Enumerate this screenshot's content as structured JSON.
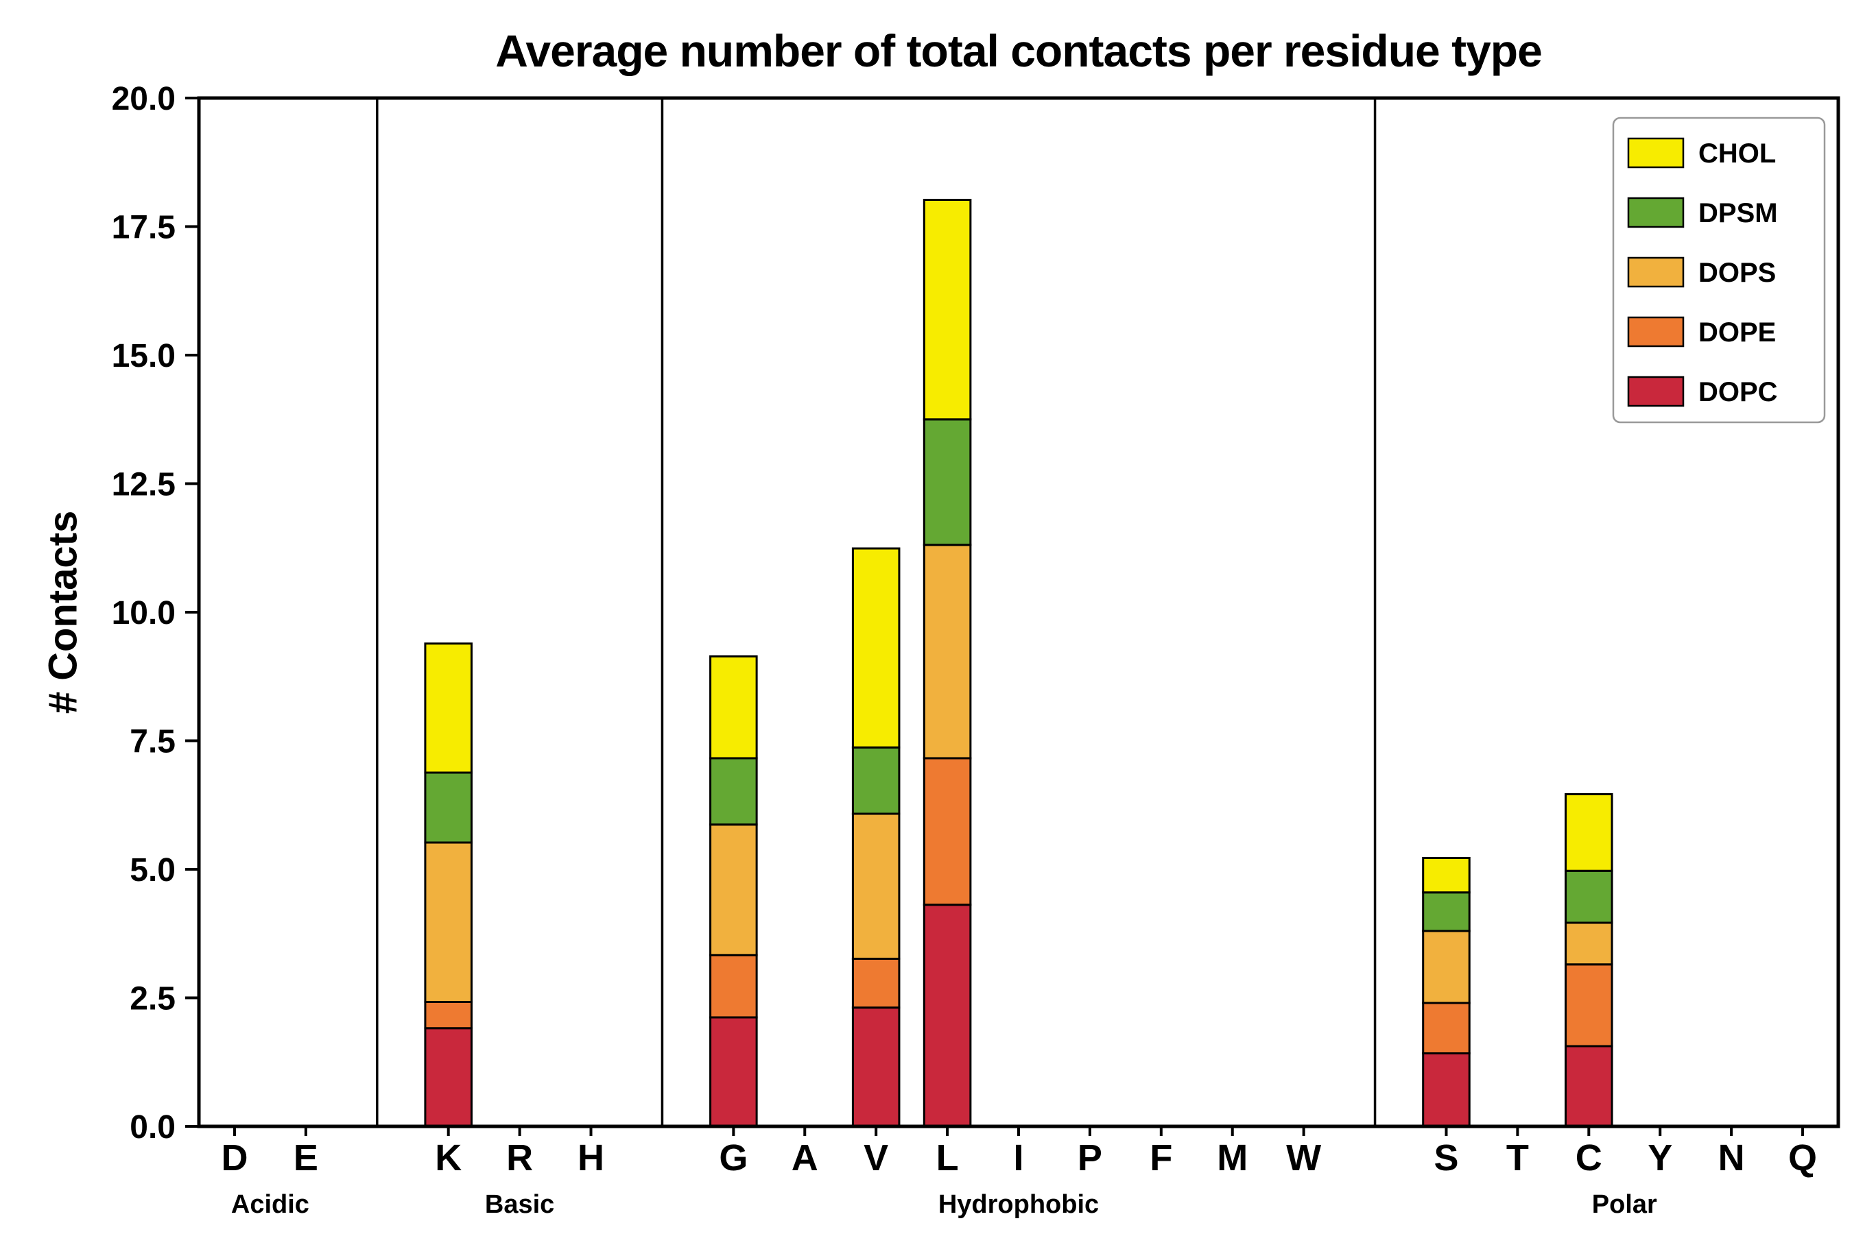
{
  "chart_data": {
    "type": "bar",
    "stacked": true,
    "title": "Average number of total contacts per residue type",
    "ylabel": "# Contacts",
    "ylim": [
      0,
      20
    ],
    "yticks": [
      0,
      2.5,
      5,
      7.5,
      10,
      12.5,
      15,
      17.5,
      20
    ],
    "grid": false,
    "legend_position": "upper right",
    "groups": [
      {
        "label": "Acidic",
        "categories": [
          "D",
          "E"
        ]
      },
      {
        "label": "Basic",
        "categories": [
          "K",
          "R",
          "H"
        ]
      },
      {
        "label": "Hydrophobic",
        "categories": [
          "G",
          "A",
          "V",
          "L",
          "I",
          "P",
          "F",
          "M",
          "W"
        ]
      },
      {
        "label": "Polar",
        "categories": [
          "S",
          "T",
          "C",
          "Y",
          "N",
          "Q"
        ]
      }
    ],
    "categories": [
      "D",
      "E",
      "K",
      "R",
      "H",
      "G",
      "A",
      "V",
      "L",
      "I",
      "P",
      "F",
      "M",
      "W",
      "S",
      "T",
      "C",
      "Y",
      "N",
      "Q"
    ],
    "series": [
      {
        "name": "DOPC",
        "color": "#c9283c",
        "values": [
          0,
          0,
          1.91,
          0,
          0,
          2.12,
          0,
          2.31,
          4.31,
          0,
          0,
          0,
          0,
          0,
          1.42,
          0,
          1.56,
          0,
          0,
          0
        ]
      },
      {
        "name": "DOPE",
        "color": "#ee7a31",
        "values": [
          0,
          0,
          0.51,
          0,
          0,
          1.21,
          0,
          0.95,
          2.85,
          0,
          0,
          0,
          0,
          0,
          0.98,
          0,
          1.59,
          0,
          0,
          0
        ]
      },
      {
        "name": "DOPS",
        "color": "#f1b13e",
        "values": [
          0,
          0,
          3.1,
          0,
          0,
          2.54,
          0,
          2.82,
          4.15,
          0,
          0,
          0,
          0,
          0,
          1.4,
          0,
          0.81,
          0,
          0,
          0
        ]
      },
      {
        "name": "DPSM",
        "color": "#64a833",
        "values": [
          0,
          0,
          1.36,
          0,
          0,
          1.29,
          0,
          1.29,
          2.44,
          0,
          0,
          0,
          0,
          0,
          0.75,
          0,
          1.01,
          0,
          0,
          0
        ]
      },
      {
        "name": "CHOL",
        "color": "#f7ec00",
        "values": [
          0,
          0,
          2.51,
          0,
          0,
          1.98,
          0,
          3.87,
          4.27,
          0,
          0,
          0,
          0,
          0,
          0.67,
          0,
          1.49,
          0,
          0,
          0
        ]
      }
    ],
    "bar_totals": {
      "K": 9.39,
      "G": 9.14,
      "V": 11.24,
      "L": 18.02,
      "S": 5.22,
      "C": 6.46
    },
    "legend": [
      "CHOL",
      "DPSM",
      "DOPS",
      "DOPE",
      "DOPC"
    ]
  }
}
